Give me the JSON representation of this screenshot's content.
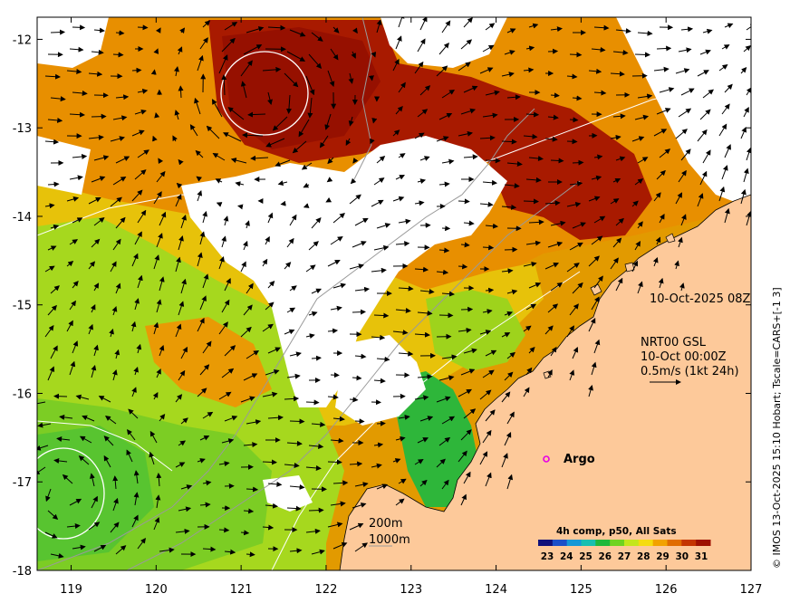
{
  "map": {
    "lon_range": [
      118.6,
      127.0
    ],
    "lat_range": [
      -18.0,
      -11.75
    ],
    "x_ticks": [
      "119",
      "120",
      "121",
      "122",
      "123",
      "124",
      "125",
      "126",
      "127"
    ],
    "y_ticks": [
      "-12",
      "-13",
      "-14",
      "-15",
      "-16",
      "-17",
      "-18"
    ],
    "land_color": "#fdc99a",
    "no_data_color": "#ffffff"
  },
  "annotations": {
    "datetime": "10-Oct-2025 08Z",
    "current_source": "NRT00 GSL",
    "current_time": "10-Oct 00:00Z",
    "scale_label": "0.5m/s (1kt 24h)",
    "argo_label": "Argo",
    "depth_200": "200m",
    "depth_1000": "1000m"
  },
  "colorbar": {
    "title": "4h comp, p50, All Sats",
    "ticks": [
      "23",
      "24",
      "25",
      "26",
      "27",
      "28",
      "29",
      "30",
      "31"
    ],
    "colors": [
      "#10107a",
      "#1b4fc8",
      "#1597d6",
      "#18bfb0",
      "#20b83a",
      "#6fd320",
      "#c4e61c",
      "#f5dc10",
      "#f2a200",
      "#e06c00",
      "#c43400",
      "#9e1000"
    ]
  },
  "credit": "© IMOS 13-Oct-2025 15:10 Hobart; Tscale=CARS+[-1 3]"
}
